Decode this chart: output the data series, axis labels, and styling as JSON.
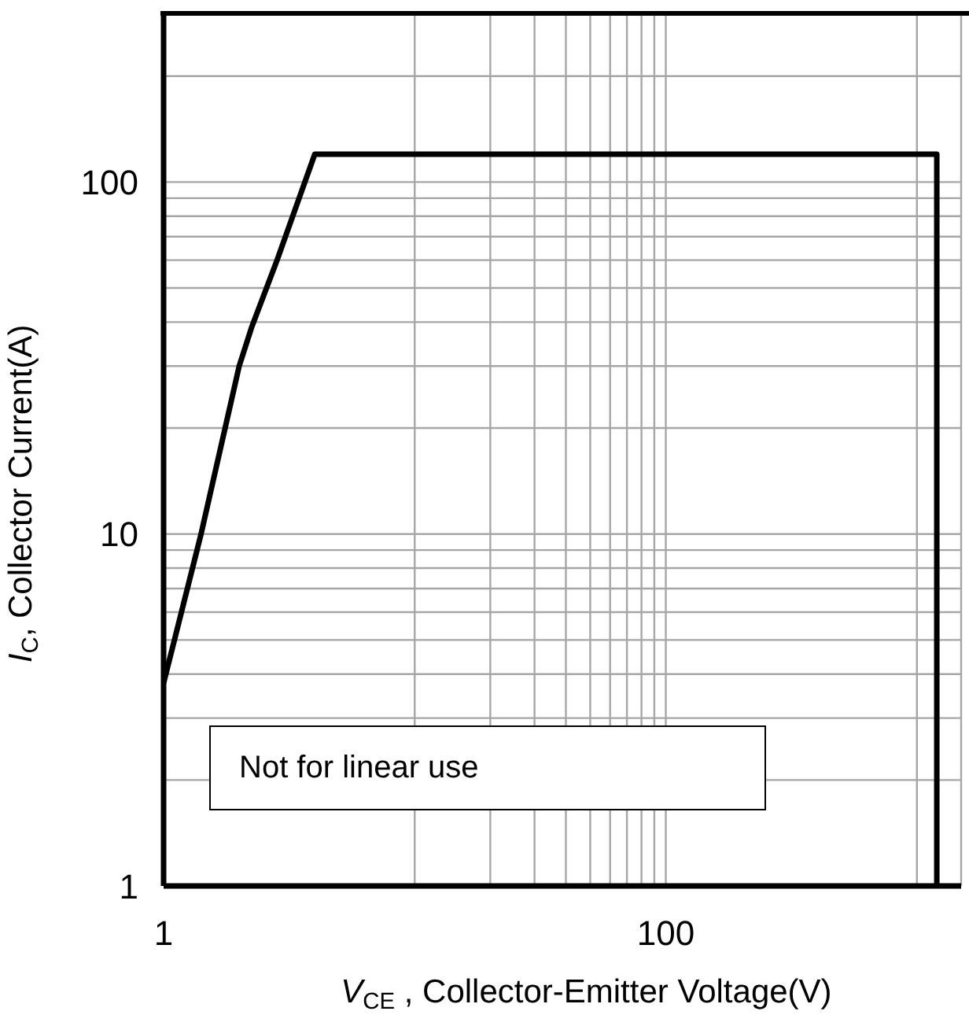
{
  "chart_data": {
    "type": "line",
    "xlabel": "V$_{CE}$ , Collector-Emitter Voltage(V)",
    "ylabel": "I$_{C}$, Collector Current(A)",
    "log": "xy",
    "series": [
      {
        "color": "#000000",
        "x": [
          1,
          1.41,
          2,
          2.24,
          2.83,
          4,
          1200,
          1200
        ],
        "values": [
          3.77,
          10,
          30,
          38.6,
          60,
          120,
          120,
          1
        ]
      }
    ],
    "xlim": [
      1,
      1500
    ],
    "ylim": [
      1,
      300
    ],
    "xticks": [
      1,
      {
        "value": 10,
        "label": null
      },
      {
        "value": 20,
        "label": null
      },
      {
        "value": 30,
        "label": null
      },
      {
        "value": 40,
        "label": null
      },
      {
        "value": 50,
        "label": null
      },
      {
        "value": 60,
        "label": null
      },
      {
        "value": 70,
        "label": null
      },
      {
        "value": 80,
        "label": null
      },
      {
        "value": 90,
        "label": null
      },
      100,
      {
        "value": 1000,
        "label": null
      }
    ],
    "yticks": [
      1,
      {
        "value": 2,
        "label": null
      },
      {
        "value": 3,
        "label": null
      },
      {
        "value": 4,
        "label": null
      },
      {
        "value": 5,
        "label": null
      },
      {
        "value": 6,
        "label": null
      },
      {
        "value": 7,
        "label": null
      },
      {
        "value": 8,
        "label": null
      },
      {
        "value": 9,
        "label": null
      },
      10,
      {
        "value": 20,
        "label": null
      },
      {
        "value": 30,
        "label": null
      },
      {
        "value": 40,
        "label": null
      },
      {
        "value": 50,
        "label": null
      },
      {
        "value": 60,
        "label": null
      },
      {
        "value": 70,
        "label": null
      },
      {
        "value": 80,
        "label": null
      },
      {
        "value": 90,
        "label": null
      },
      100,
      {
        "value": 200,
        "label": null
      }
    ],
    "grid": true,
    "marker": "none",
    "line_style": "solid",
    "annotations": [
      "Not for linear use"
    ]
  }
}
